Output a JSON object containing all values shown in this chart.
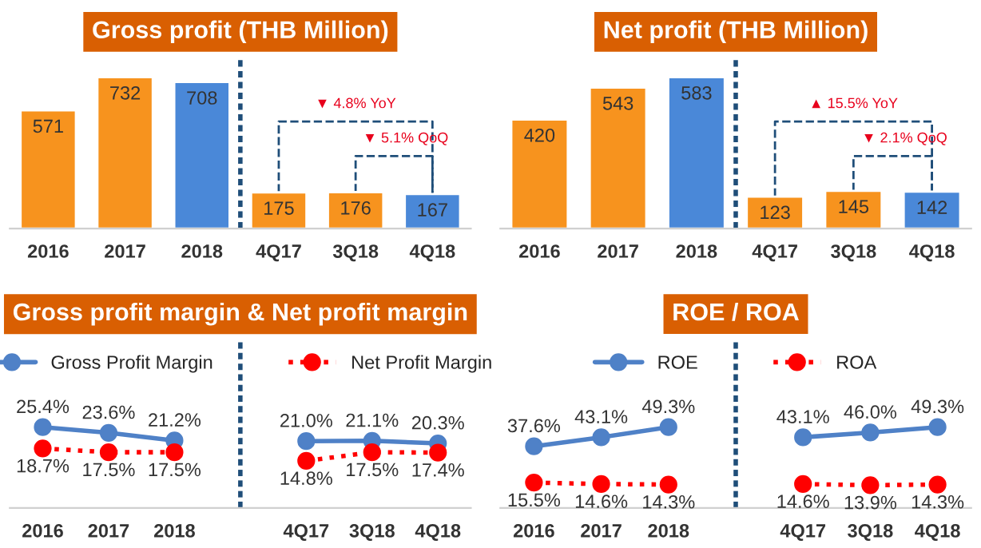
{
  "chart_data": [
    {
      "type": "bar",
      "title": "Gross profit (THB Million)",
      "categories": [
        "2016",
        "2017",
        "2018",
        "4Q17",
        "3Q18",
        "4Q18"
      ],
      "values": [
        571,
        732,
        708,
        175,
        176,
        167
      ],
      "colors": [
        "#f7931e",
        "#f7931e",
        "#4a88d8",
        "#f7931e",
        "#f7931e",
        "#4a88d8"
      ],
      "data_labels": true,
      "tick_labels": "x",
      "grid": false,
      "annotations": [
        "▼ 4.8% YoY",
        "▼ 5.1% QoQ"
      ]
    },
    {
      "type": "bar",
      "title": "Net profit (THB Million)",
      "categories": [
        "2016",
        "2017",
        "2018",
        "4Q17",
        "3Q18",
        "4Q18"
      ],
      "values": [
        420,
        543,
        583,
        123,
        145,
        142
      ],
      "colors": [
        "#f7931e",
        "#f7931e",
        "#4a88d8",
        "#f7931e",
        "#f7931e",
        "#4a88d8"
      ],
      "data_labels": true,
      "tick_labels": "x",
      "grid": false,
      "annotations": [
        "▲ 15.5% YoY",
        "▼ 2.1% QoQ"
      ]
    },
    {
      "type": "line",
      "title": "Gross profit margin & Net profit margin",
      "categories": [
        "2016",
        "2017",
        "2018",
        null,
        "4Q17",
        "3Q18",
        "4Q18"
      ],
      "tick_labels": "x",
      "grid": false,
      "legend": "top",
      "marker": "circle",
      "series": [
        {
          "name": "Gross Profit Margin",
          "color": "#4f81c7",
          "line_style": "solid",
          "values": [
            25.4,
            23.6,
            21.2,
            null,
            21.0,
            21.1,
            20.3
          ],
          "value_labels": [
            "25.4%",
            "23.6%",
            "21.2%",
            null,
            "21.0%",
            "21.1%",
            "20.3%"
          ]
        },
        {
          "name": "Net Profit Margin",
          "color": "#ff0000",
          "line_style": "dotted",
          "values": [
            18.7,
            17.5,
            17.5,
            null,
            14.8,
            17.5,
            17.4
          ],
          "value_labels": [
            "18.7%",
            "17.5%",
            "17.5%",
            null,
            "14.8%",
            "17.5%",
            "17.4%"
          ]
        }
      ]
    },
    {
      "type": "line",
      "title": "ROE / ROA",
      "categories": [
        "2016",
        "2017",
        "2018",
        null,
        "4Q17",
        "3Q18",
        "4Q18"
      ],
      "tick_labels": "x",
      "grid": false,
      "legend": "top",
      "marker": "circle",
      "series": [
        {
          "name": "ROE",
          "color": "#4f81c7",
          "line_style": "solid",
          "values": [
            37.6,
            43.1,
            49.3,
            null,
            43.1,
            46.0,
            49.3
          ],
          "value_labels": [
            "37.6%",
            "43.1%",
            "49.3%",
            null,
            "43.1%",
            "46.0%",
            "49.3%"
          ]
        },
        {
          "name": "ROA",
          "color": "#ff0000",
          "line_style": "dotted",
          "values": [
            15.5,
            14.6,
            14.3,
            null,
            14.6,
            13.9,
            14.3
          ],
          "value_labels": [
            "15.5%",
            "14.6%",
            "14.3%",
            null,
            "14.6%",
            "13.9%",
            "14.3%"
          ]
        }
      ]
    }
  ]
}
